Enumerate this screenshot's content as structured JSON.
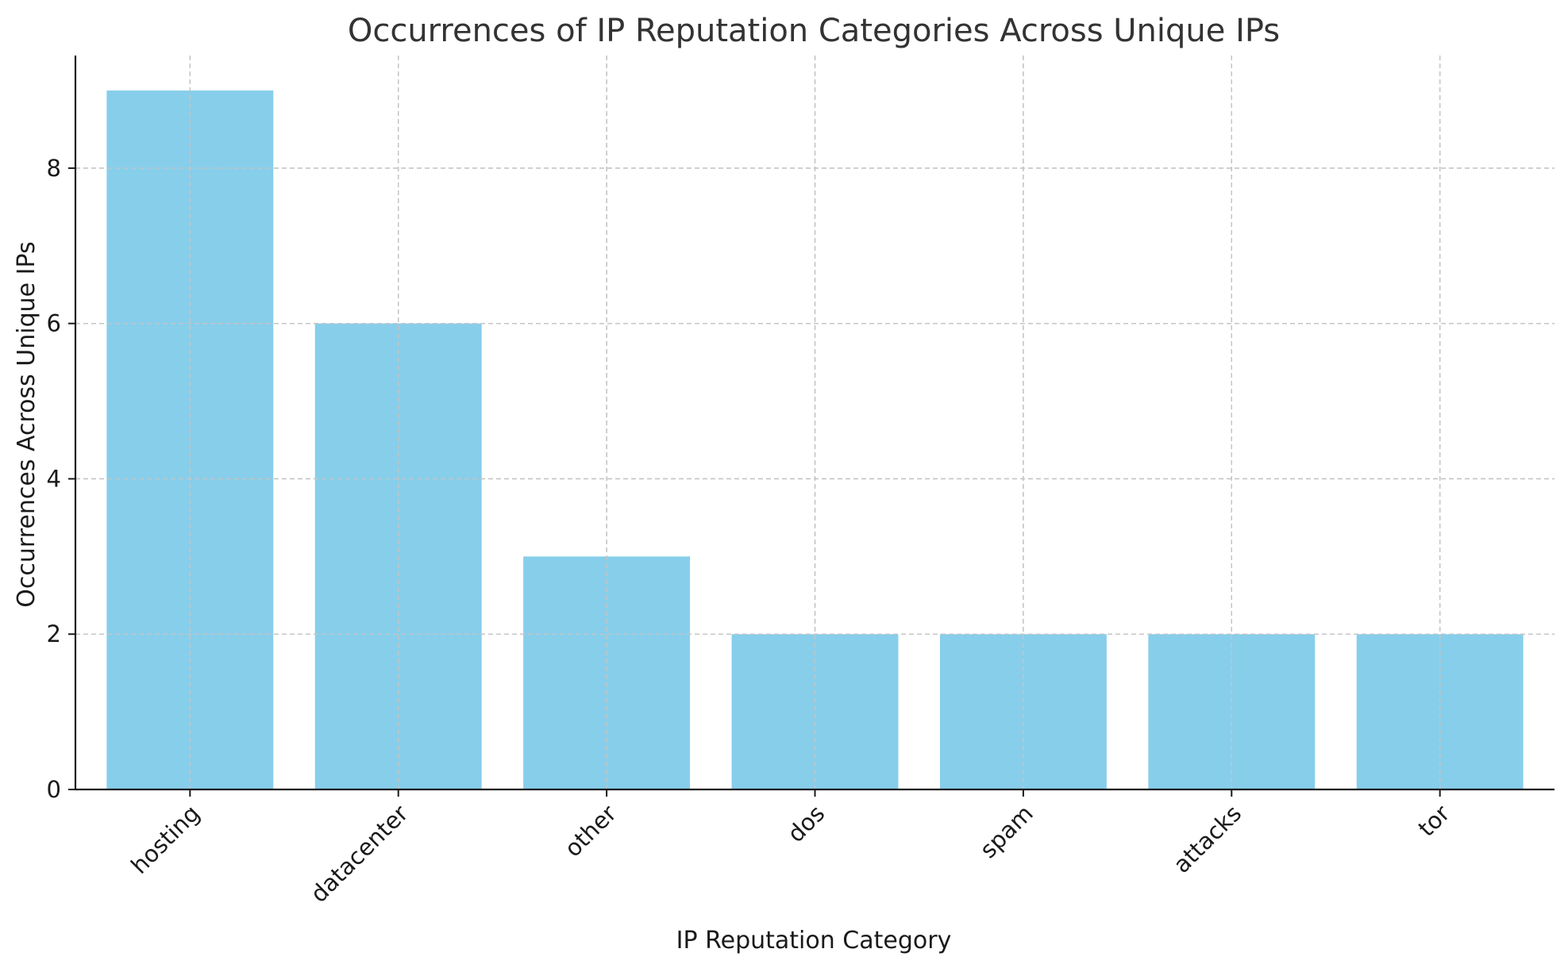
{
  "chart_data": {
    "type": "bar",
    "title": "Occurrences of IP Reputation Categories Across Unique IPs",
    "xlabel": "IP Reputation Category",
    "ylabel": "Occurrences Across Unique IPs",
    "categories": [
      "hosting",
      "datacenter",
      "other",
      "dos",
      "spam",
      "attacks",
      "tor"
    ],
    "values": [
      9,
      6,
      3,
      2,
      2,
      2,
      2
    ],
    "ylim": [
      0,
      9.45
    ],
    "yticks": [
      0,
      2,
      4,
      6,
      8
    ],
    "grid": true,
    "legend": "none",
    "bar_color": "#87CEEB"
  }
}
